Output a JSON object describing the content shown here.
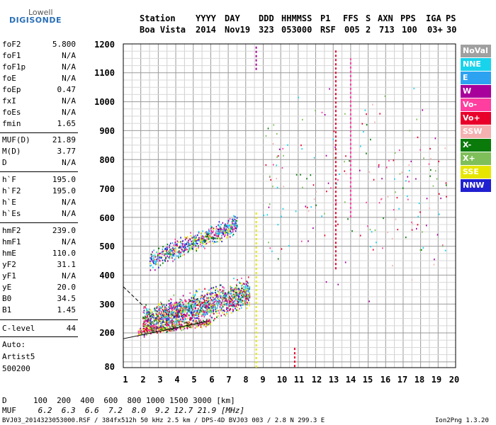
{
  "logo": {
    "line1": "Lowell",
    "line2": "DIGISONDE"
  },
  "header": {
    "labels": [
      "Station",
      "YYYY",
      "DAY",
      "DDD",
      "HHMMSS",
      "P1",
      "FFS",
      "S",
      "AXN",
      "PPS",
      "IGA",
      "PS"
    ],
    "values": [
      "Boa Vista",
      "2014",
      "Nov19",
      "323",
      "053000",
      "RSF",
      "005",
      "2",
      "713",
      "100",
      "03+",
      "30"
    ]
  },
  "params_group1": [
    {
      "name": "foF2",
      "value": "5.800"
    },
    {
      "name": "foF1",
      "value": "N/A"
    },
    {
      "name": "foF1p",
      "value": "N/A"
    },
    {
      "name": "foE",
      "value": "N/A"
    },
    {
      "name": "foEp",
      "value": "0.47"
    },
    {
      "name": "fxI",
      "value": "N/A"
    },
    {
      "name": "foEs",
      "value": "N/A"
    },
    {
      "name": "fmin",
      "value": "1.65"
    }
  ],
  "params_group2": [
    {
      "name": "MUF(D)",
      "value": "21.89"
    },
    {
      "name": "M(D)",
      "value": "3.77"
    },
    {
      "name": "D",
      "value": "N/A"
    }
  ],
  "params_group3": [
    {
      "name": "h`F",
      "value": "195.0"
    },
    {
      "name": "h`F2",
      "value": "195.0"
    },
    {
      "name": "h`E",
      "value": "N/A"
    },
    {
      "name": "h`Es",
      "value": "N/A"
    }
  ],
  "params_group4": [
    {
      "name": "hmF2",
      "value": "239.0"
    },
    {
      "name": "hmF1",
      "value": "N/A"
    },
    {
      "name": "hmE",
      "value": "110.0"
    },
    {
      "name": "yF2",
      "value": "31.1"
    },
    {
      "name": "yF1",
      "value": "N/A"
    },
    {
      "name": "yE",
      "value": "20.0"
    },
    {
      "name": "B0",
      "value": "34.5"
    },
    {
      "name": "B1",
      "value": "1.45"
    }
  ],
  "clevel": {
    "name": "C-level",
    "value": "44"
  },
  "auto": {
    "line1": "Auto:",
    "line2": "Artist5",
    "line3": "500200"
  },
  "legend": [
    {
      "label": "NoVal",
      "color": "#a0a0a0"
    },
    {
      "label": "NNE",
      "color": "#19d3ec"
    },
    {
      "label": "E",
      "color": "#2da2f0"
    },
    {
      "label": "W",
      "color": "#a8009a"
    },
    {
      "label": "Vo-",
      "color": "#ff3ea0"
    },
    {
      "label": "Vo+",
      "color": "#e8002a"
    },
    {
      "label": "SSW",
      "color": "#f5b0b0"
    },
    {
      "label": "X-",
      "color": "#0a7a0a"
    },
    {
      "label": "X+",
      "color": "#7fbf5a"
    },
    {
      "label": "SSE",
      "color": "#e6e600"
    },
    {
      "label": "NNW",
      "color": "#2020d0"
    }
  ],
  "footer": {
    "d_label": "D",
    "d_values": "100  200  400  600  800 1000 1500 3000 [km]",
    "muf_label": "MUF",
    "muf_values": " 6.2  6.3  6.6  7.2  8.0  9.2 12.7 21.9 [MHz]",
    "file_info": "BVJ03_2014323053000.RSF / 384fx512h 50 kHz 2.5 km / DPS-4D BVJ03 003 / 2.8 N 299.3 E",
    "version": "Ion2Png 1.3.20"
  },
  "chart_data": {
    "type": "scatter",
    "x_ticks": [
      "1",
      "2",
      "3",
      "4",
      "5",
      "6",
      "7",
      "8",
      "9",
      "10",
      "11",
      "12",
      "13",
      "14",
      "15",
      "16",
      "17",
      "18",
      "19",
      "20"
    ],
    "y_ticks": [
      "80",
      "200",
      "300",
      "400",
      "500",
      "600",
      "700",
      "800",
      "900",
      "1000",
      "1100",
      "1200"
    ],
    "xlim": [
      1,
      20
    ],
    "ylim": [
      80,
      1200
    ],
    "grid": true,
    "clusters": [
      {
        "name": "F-trace upper",
        "color_keys": [
          "NNE",
          "E",
          "W",
          "Vo-",
          "X-",
          "NNW",
          "SSE"
        ],
        "x_range": [
          2.5,
          7.5
        ],
        "y_center_start": 450,
        "y_center_end": 580,
        "spread": 45,
        "count": 650
      },
      {
        "name": "F-trace main",
        "color_keys": [
          "Vo-",
          "Vo+",
          "W",
          "E",
          "NNE",
          "SSE",
          "X-",
          "X+",
          "NNW"
        ],
        "x_range": [
          2.1,
          8.2
        ],
        "y_center_start": 240,
        "y_center_end": 340,
        "spread": 70,
        "count": 1500
      },
      {
        "name": "F-trace low",
        "color_keys": [
          "W",
          "Vo-",
          "X-",
          "X+",
          "SSE",
          "Vo+"
        ],
        "x_range": [
          1.8,
          6.0
        ],
        "y_center_start": 205,
        "y_center_end": 240,
        "spread": 20,
        "count": 350
      },
      {
        "name": "sporadic",
        "color_keys": [
          "Vo+",
          "Vo-",
          "X-",
          "X+",
          "SSW",
          "NNE",
          "W"
        ],
        "x_range": [
          9.0,
          19.5
        ],
        "y_center_start": 700,
        "y_center_end": 700,
        "spread": 420,
        "count": 200
      }
    ],
    "fit_lines": [
      {
        "color": "#000000",
        "points": [
          [
            1.0,
            180
          ],
          [
            5.8,
            240
          ]
        ]
      },
      {
        "color": "#000000",
        "dashed": true,
        "points": [
          [
            1.0,
            360
          ],
          [
            2.2,
            290
          ]
        ]
      }
    ],
    "columns": [
      {
        "x": 8.6,
        "y_from": 1110,
        "y_to": 1195,
        "color": "#a8009a"
      },
      {
        "x": 8.6,
        "y_from": 80,
        "y_to": 620,
        "color": "#e6e600"
      },
      {
        "x": 10.8,
        "y_from": 82,
        "y_to": 150,
        "color": "#e8002a"
      },
      {
        "x": 13.15,
        "y_from": 420,
        "y_to": 1180,
        "color": "#e8002a"
      },
      {
        "x": 14.0,
        "y_from": 600,
        "y_to": 1150,
        "color": "#ff3ea0"
      }
    ]
  }
}
